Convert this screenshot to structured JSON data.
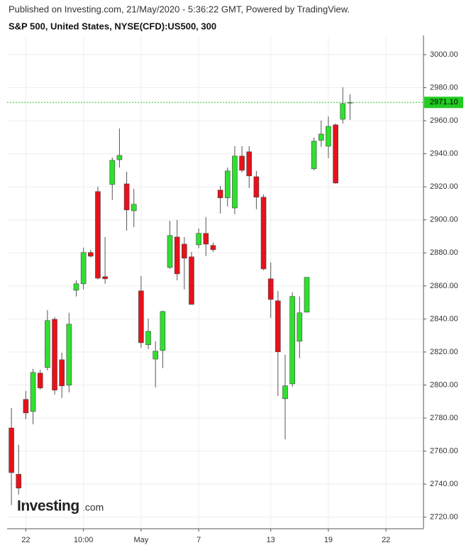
{
  "chart_data": {
    "type": "candlestick",
    "header": "Published on Investing.com, 21/May/2020 - 5:36:22 GMT, Powered by TradingView.",
    "title": "S&P 500, United States, NYSE(CFD):US500, 300",
    "logo": {
      "brand": "Investing",
      "suffix": ".com"
    },
    "series": [
      {
        "up_color": "#2fe02f",
        "down_color": "#e8111a",
        "flat_color": "#888888",
        "open": [
          2774,
          2746,
          2791.3,
          2784,
          2807.2,
          2810.6,
          2839.8,
          2815.3,
          2799.9,
          2857.4,
          2861.3,
          2880.2,
          2917.1,
          2865.6,
          2921.4,
          2936.4,
          2921.8,
          2905.5,
          2857,
          2824.4,
          2815.7,
          2820.9,
          2871.2,
          2889.6,
          2885.3,
          2877.6,
          2884.9,
          2891.8,
          2884.5,
          2918,
          2913.3,
          2907.2,
          2938.6,
          2941.2,
          2926.1,
          2913.7,
          2864.3,
          2851,
          2791.7,
          2800.7,
          2826.5,
          2844.1,
          2930.9,
          2948.1,
          2944.6,
          2957.5,
          2960.9,
          2971.1
        ],
        "high": [
          2786.1,
          2763.8,
          2796.4,
          2809.8,
          2809.3,
          2845.4,
          2841.1,
          2819.6,
          2843.7,
          2863.4,
          2883.2,
          2881.9,
          2920.1,
          2889.6,
          2937.7,
          2955.3,
          2929.1,
          2918.8,
          2866,
          2840.2,
          2826.5,
          2845,
          2899.5,
          2899.9,
          2889.6,
          2880.6,
          2894.8,
          2901.7,
          2886.2,
          2920.6,
          2931.7,
          2944.6,
          2944.6,
          2944.6,
          2929.6,
          2915.4,
          2874.2,
          2857,
          2818.3,
          2856.1,
          2853.6,
          2865.2,
          2949.8,
          2960.1,
          2962.6,
          2958.3,
          2980.2,
          2976
        ],
        "low": [
          2727.3,
          2733.7,
          2779.3,
          2776.3,
          2797.3,
          2808.9,
          2794.3,
          2792.2,
          2795.6,
          2853.6,
          2857.9,
          2877.2,
          2863.9,
          2861.3,
          2912,
          2931.7,
          2893.5,
          2895.6,
          2822.6,
          2821.8,
          2798.6,
          2810.2,
          2870.3,
          2863.4,
          2857.9,
          2848.8,
          2882.8,
          2878,
          2880.6,
          2903.8,
          2908.1,
          2903.4,
          2928.7,
          2919.3,
          2906.4,
          2869.5,
          2840.7,
          2793.4,
          2767.2,
          2799,
          2816.2,
          2844.1,
          2930,
          2944.2,
          2937.3,
          2921.8,
          2958.3,
          2960.5
        ],
        "close": [
          2747,
          2737.6,
          2783.1,
          2807.6,
          2798.2,
          2839,
          2796.9,
          2799.5,
          2836.8,
          2861.3,
          2880.2,
          2878,
          2864.7,
          2864.3,
          2936,
          2939,
          2906,
          2909.4,
          2825.6,
          2832.5,
          2820.5,
          2844.5,
          2890.5,
          2867.3,
          2876.8,
          2848.8,
          2891.8,
          2885.3,
          2881.9,
          2913.3,
          2929.6,
          2938.6,
          2930,
          2926.6,
          2913.7,
          2870.3,
          2851.8,
          2820.1,
          2799.5,
          2853.6,
          2843.7,
          2865.2,
          2947.6,
          2951.9,
          2956.6,
          2922.3,
          2970.4,
          2971.1
        ]
      }
    ],
    "last_price": {
      "value": 2971.1,
      "label": "2971.10",
      "color": "#22cc22"
    },
    "xlim": [
      -0.6,
      57.2
    ],
    "xticks": [
      {
        "value": 2,
        "label": "22"
      },
      {
        "value": 10,
        "label": "10:00"
      },
      {
        "value": 18,
        "label": "May"
      },
      {
        "value": 26,
        "label": "7"
      },
      {
        "value": 36,
        "label": "13"
      },
      {
        "value": 44,
        "label": "19"
      },
      {
        "value": 52,
        "label": "22"
      }
    ],
    "ylim": [
      2713,
      3011.6
    ],
    "yticks": [
      {
        "value": 2720,
        "label": "2720.00"
      },
      {
        "value": 2740,
        "label": "2740.00"
      },
      {
        "value": 2760,
        "label": "2760.00"
      },
      {
        "value": 2780,
        "label": "2780.00"
      },
      {
        "value": 2800,
        "label": "2800.00"
      },
      {
        "value": 2820,
        "label": "2820.00"
      },
      {
        "value": 2840,
        "label": "2840.00"
      },
      {
        "value": 2860,
        "label": "2860.00"
      },
      {
        "value": 2880,
        "label": "2880.00"
      },
      {
        "value": 2900,
        "label": "2900.00"
      },
      {
        "value": 2920,
        "label": "2920.00"
      },
      {
        "value": 2940,
        "label": "2940.00"
      },
      {
        "value": 2960,
        "label": "2960.00"
      },
      {
        "value": 2980,
        "label": "2980.00"
      },
      {
        "value": 3000,
        "label": "3000.00"
      }
    ],
    "grid": true
  }
}
